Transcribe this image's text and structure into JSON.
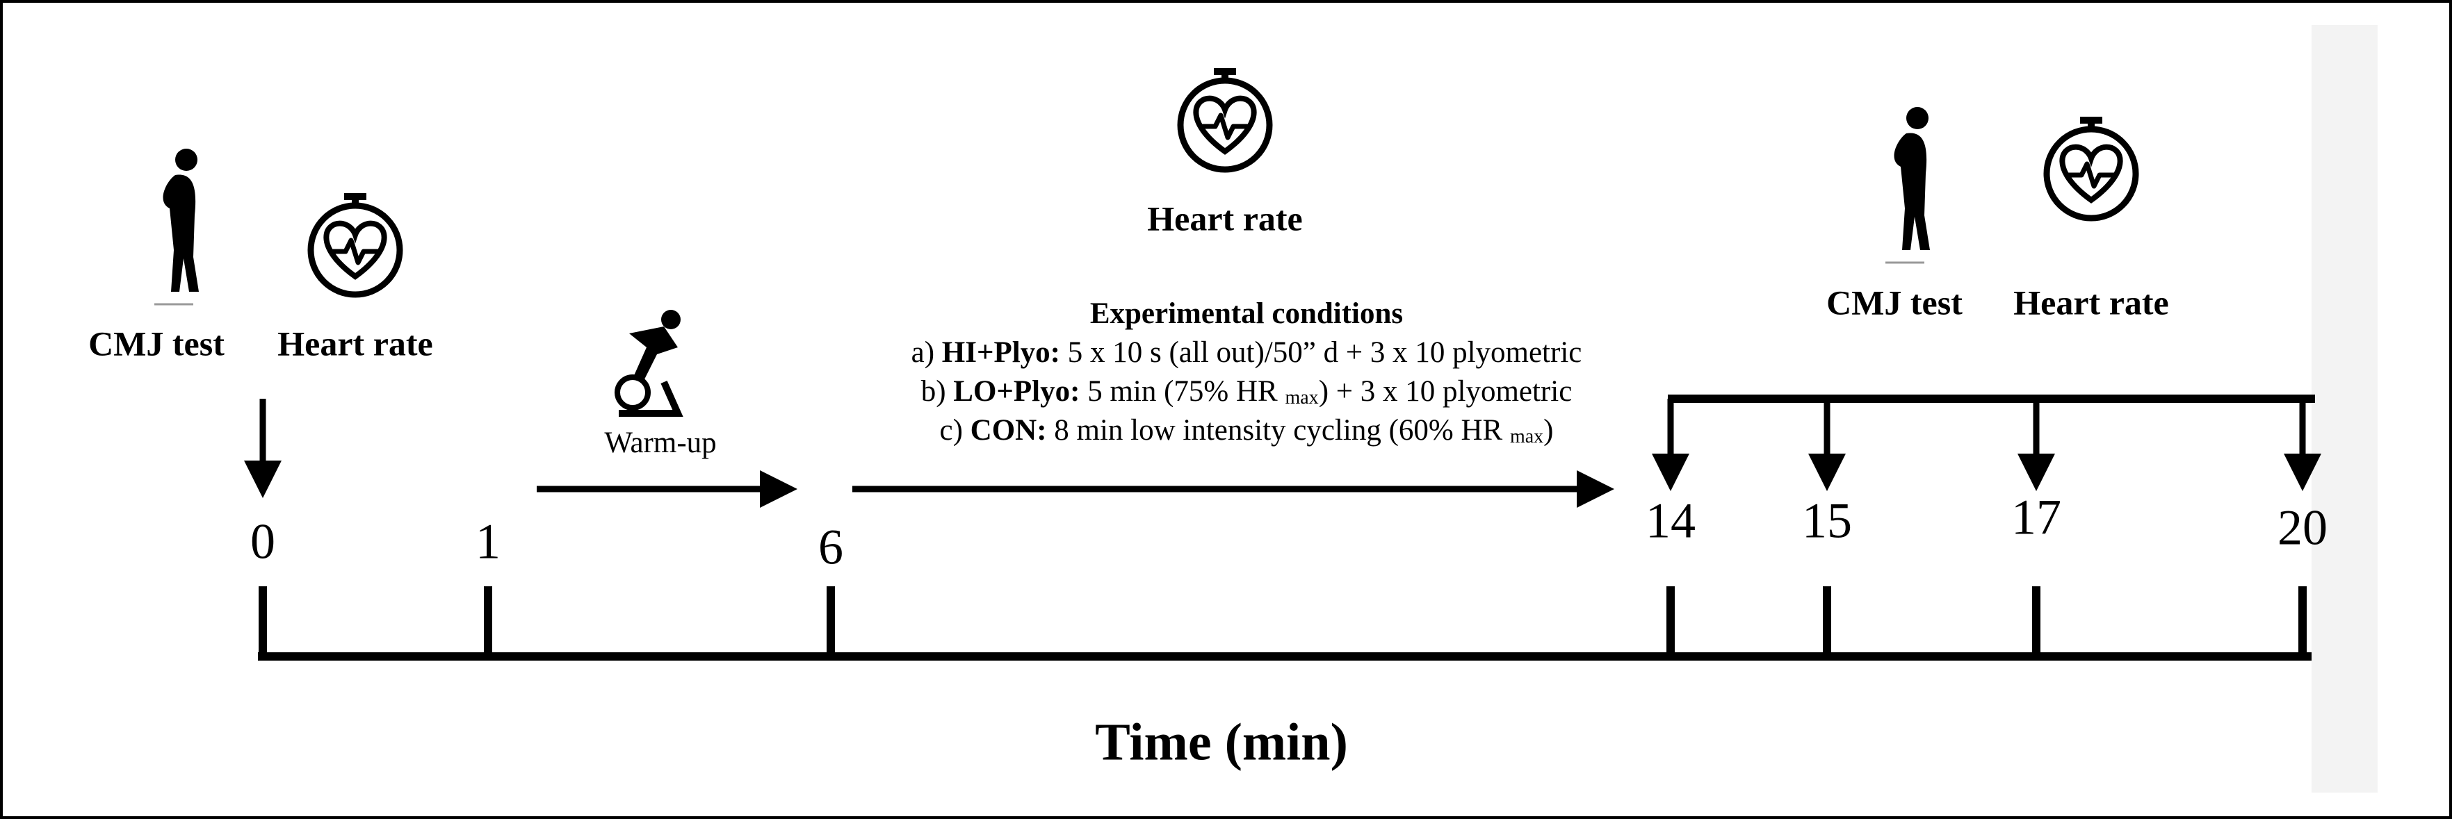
{
  "left": {
    "cmj_label": "CMJ test",
    "hr_label": "Heart rate"
  },
  "warmup": {
    "label": "Warm-up"
  },
  "middle": {
    "hr_label": "Heart rate"
  },
  "conditions": {
    "title": "Experimental conditions",
    "lines": [
      {
        "prefix": "a)",
        "bold": "HI+Plyo:",
        "text": "5 x 10 s (all out)/50” d + 3 x 10 plyometric"
      },
      {
        "prefix": "b)",
        "bold": "LO+Plyo:",
        "text": "5 min (75% HR",
        "sub": "max",
        "tail": ") + 3 x 10 plyometric"
      },
      {
        "prefix": "c)",
        "bold": "CON:",
        "text": "8 min low intensity cycling (60% HR",
        "sub": "max",
        "tail": ")"
      }
    ]
  },
  "right": {
    "cmj_label": "CMJ test",
    "hr_label": "Heart rate"
  },
  "timeline": {
    "ticks": [
      "0",
      "1",
      "6",
      "14",
      "15",
      "17",
      "20"
    ],
    "axis_label": "Time (min)"
  }
}
